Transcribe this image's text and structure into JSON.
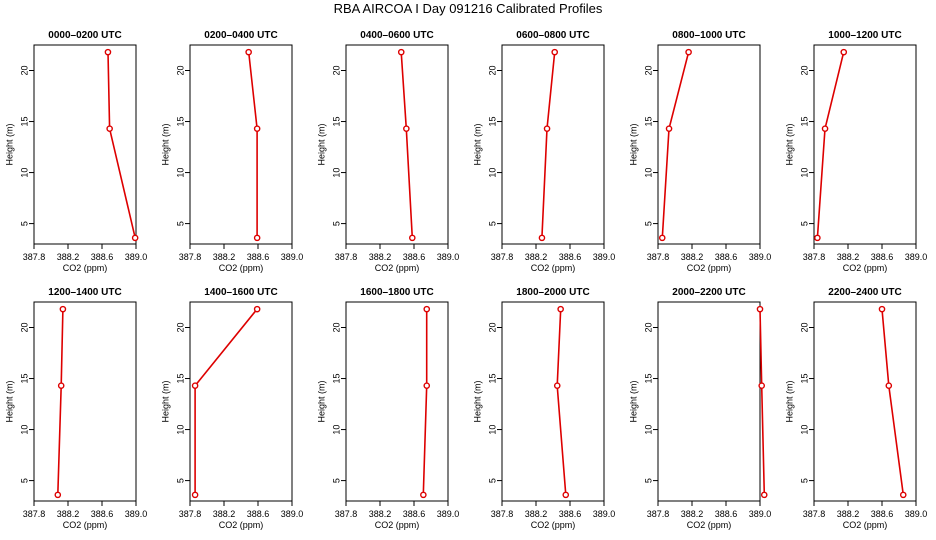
{
  "figure": {
    "title": "RBA AIRCOA I  Day 091216  Calibrated Profiles"
  },
  "colors": {
    "series": "#dd0000",
    "axis": "#000000"
  },
  "chart_data": [
    {
      "type": "line",
      "title": "0000–0200 UTC",
      "xlabel": "CO2 (ppm)",
      "ylabel": "Height (m)",
      "xlim": [
        387.8,
        389.0
      ],
      "ylim": [
        3,
        22.5
      ],
      "xticks": [
        "387.8",
        "388.2",
        "388.6",
        "389.0"
      ],
      "yticks": [
        "5",
        "10",
        "15",
        "20"
      ],
      "x": [
        388.67,
        388.69,
        388.99
      ],
      "y": [
        21.8,
        14.3,
        3.6
      ],
      "grid": false
    },
    {
      "type": "line",
      "title": "0200–0400 UTC",
      "xlabel": "CO2 (ppm)",
      "ylabel": "Height (m)",
      "xlim": [
        387.8,
        389.0
      ],
      "ylim": [
        3,
        22.5
      ],
      "xticks": [
        "387.8",
        "388.2",
        "388.6",
        "389.0"
      ],
      "yticks": [
        "5",
        "10",
        "15",
        "20"
      ],
      "x": [
        388.49,
        388.59,
        388.59
      ],
      "y": [
        21.8,
        14.3,
        3.6
      ],
      "grid": false
    },
    {
      "type": "line",
      "title": "0400–0600 UTC",
      "xlabel": "CO2 (ppm)",
      "ylabel": "Height (m)",
      "xlim": [
        387.8,
        389.0
      ],
      "ylim": [
        3,
        22.5
      ],
      "xticks": [
        "387.8",
        "388.2",
        "388.6",
        "389.0"
      ],
      "yticks": [
        "5",
        "10",
        "15",
        "20"
      ],
      "x": [
        388.45,
        388.51,
        388.58
      ],
      "y": [
        21.8,
        14.3,
        3.6
      ],
      "grid": false
    },
    {
      "type": "line",
      "title": "0600–0800 UTC",
      "xlabel": "CO2 (ppm)",
      "ylabel": "Height (m)",
      "xlim": [
        387.8,
        389.0
      ],
      "ylim": [
        3,
        22.5
      ],
      "xticks": [
        "387.8",
        "388.2",
        "388.6",
        "389.0"
      ],
      "yticks": [
        "5",
        "10",
        "15",
        "20"
      ],
      "x": [
        388.42,
        388.33,
        388.27
      ],
      "y": [
        21.8,
        14.3,
        3.6
      ],
      "grid": false
    },
    {
      "type": "line",
      "title": "0800–1000 UTC",
      "xlabel": "CO2 (ppm)",
      "ylabel": "Height (m)",
      "xlim": [
        387.8,
        389.0
      ],
      "ylim": [
        3,
        22.5
      ],
      "xticks": [
        "387.8",
        "388.2",
        "388.6",
        "389.0"
      ],
      "yticks": [
        "5",
        "10",
        "15",
        "20"
      ],
      "x": [
        388.16,
        387.93,
        387.85
      ],
      "y": [
        21.8,
        14.3,
        3.6
      ],
      "grid": false
    },
    {
      "type": "line",
      "title": "1000–1200 UTC",
      "xlabel": "CO2 (ppm)",
      "ylabel": "Height (m)",
      "xlim": [
        387.8,
        389.0
      ],
      "ylim": [
        3,
        22.5
      ],
      "xticks": [
        "387.8",
        "388.2",
        "388.6",
        "389.0"
      ],
      "yticks": [
        "5",
        "10",
        "15",
        "20"
      ],
      "x": [
        388.15,
        387.93,
        387.84
      ],
      "y": [
        21.8,
        14.3,
        3.6
      ],
      "grid": false
    },
    {
      "type": "line",
      "title": "1200–1400 UTC",
      "xlabel": "CO2 (ppm)",
      "ylabel": "Height (m)",
      "xlim": [
        387.8,
        389.0
      ],
      "ylim": [
        3,
        22.5
      ],
      "xticks": [
        "387.8",
        "388.2",
        "388.6",
        "389.0"
      ],
      "yticks": [
        "5",
        "10",
        "15",
        "20"
      ],
      "x": [
        388.14,
        388.12,
        388.08
      ],
      "y": [
        21.8,
        14.3,
        3.6
      ],
      "grid": false
    },
    {
      "type": "line",
      "title": "1400–1600 UTC",
      "xlabel": "CO2 (ppm)",
      "ylabel": "Height (m)",
      "xlim": [
        387.8,
        389.0
      ],
      "ylim": [
        3,
        22.5
      ],
      "xticks": [
        "387.8",
        "388.2",
        "388.6",
        "389.0"
      ],
      "yticks": [
        "5",
        "10",
        "15",
        "20"
      ],
      "x": [
        388.59,
        387.86,
        387.86
      ],
      "y": [
        21.8,
        14.3,
        3.6
      ],
      "grid": false
    },
    {
      "type": "line",
      "title": "1600–1800 UTC",
      "xlabel": "CO2 (ppm)",
      "ylabel": "Height (m)",
      "xlim": [
        387.8,
        389.0
      ],
      "ylim": [
        3,
        22.5
      ],
      "xticks": [
        "387.8",
        "388.2",
        "388.6",
        "389.0"
      ],
      "yticks": [
        "5",
        "10",
        "15",
        "20"
      ],
      "x": [
        388.75,
        388.75,
        388.71
      ],
      "y": [
        21.8,
        14.3,
        3.6
      ],
      "grid": false
    },
    {
      "type": "line",
      "title": "1800–2000 UTC",
      "xlabel": "CO2 (ppm)",
      "ylabel": "Height (m)",
      "xlim": [
        387.8,
        389.0
      ],
      "ylim": [
        3,
        22.5
      ],
      "xticks": [
        "387.8",
        "388.2",
        "388.6",
        "389.0"
      ],
      "yticks": [
        "5",
        "10",
        "15",
        "20"
      ],
      "x": [
        388.49,
        388.45,
        388.55
      ],
      "y": [
        21.8,
        14.3,
        3.6
      ],
      "grid": false
    },
    {
      "type": "line",
      "title": "2000–2200 UTC",
      "xlabel": "CO2 (ppm)",
      "ylabel": "Height (m)",
      "xlim": [
        387.8,
        389.0
      ],
      "ylim": [
        3,
        22.5
      ],
      "xticks": [
        "387.8",
        "388.2",
        "388.6",
        "389.0"
      ],
      "yticks": [
        "5",
        "10",
        "15",
        "20"
      ],
      "x": [
        389.0,
        389.02,
        389.05
      ],
      "y": [
        21.8,
        14.3,
        3.6
      ],
      "grid": false
    },
    {
      "type": "line",
      "title": "2200–2400 UTC",
      "xlabel": "CO2 (ppm)",
      "ylabel": "Height (m)",
      "xlim": [
        387.8,
        389.0
      ],
      "ylim": [
        3,
        22.5
      ],
      "xticks": [
        "387.8",
        "388.2",
        "388.6",
        "389.0"
      ],
      "yticks": [
        "5",
        "10",
        "15",
        "20"
      ],
      "x": [
        388.6,
        388.68,
        388.85
      ],
      "y": [
        21.8,
        14.3,
        3.6
      ],
      "grid": false
    }
  ]
}
